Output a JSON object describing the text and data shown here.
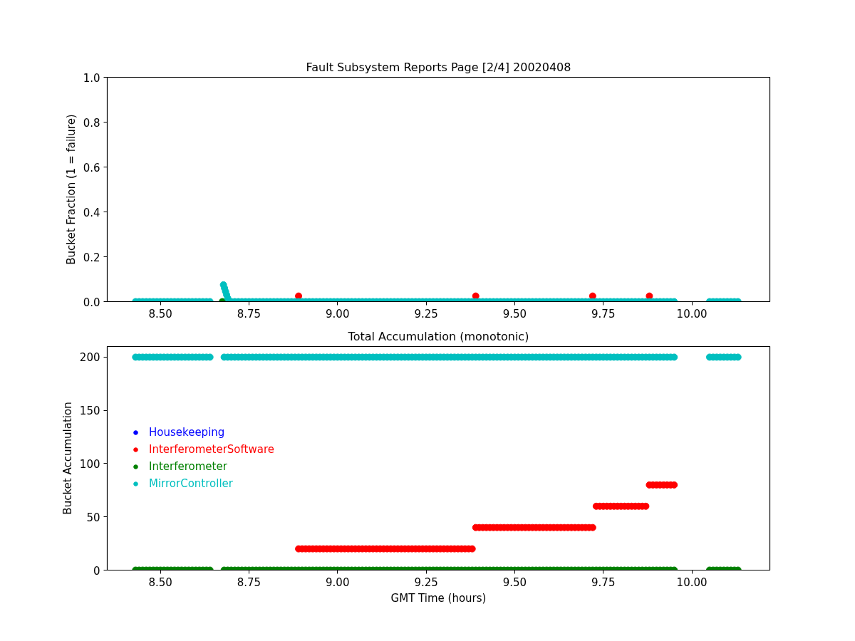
{
  "chart_data": [
    {
      "type": "scatter",
      "title": "Fault Subsystem Reports Page [2/4] 20020408",
      "ylabel": "Bucket Fraction (1 = failure)",
      "marker": "circle",
      "xlim": [
        8.35,
        10.22
      ],
      "xticks": [
        {
          "value": 8.5,
          "label": "8.50"
        },
        {
          "value": 8.75,
          "label": "8.75"
        },
        {
          "value": 9.0,
          "label": "9.00"
        },
        {
          "value": 9.25,
          "label": "9.25"
        },
        {
          "value": 9.5,
          "label": "9.50"
        },
        {
          "value": 9.75,
          "label": "9.75"
        },
        {
          "value": 10.0,
          "label": "10.00"
        }
      ],
      "ylim": [
        0,
        1
      ],
      "yticks": [
        {
          "value": 0,
          "label": "0.0"
        },
        0.2,
        0.4,
        0.6,
        0.8,
        {
          "value": 1,
          "label": "1.0"
        }
      ],
      "series": [
        {
          "color": "#ff0000",
          "x": [
            8.89,
            9.39,
            9.72,
            9.88
          ],
          "values": [
            0.025,
            0.025,
            0.025,
            0.025
          ]
        },
        {
          "color": "#008000",
          "x": [
            8.675
          ],
          "values": [
            0
          ]
        },
        {
          "color": "#00bfbf",
          "x": [
            8.43,
            8.44,
            8.45,
            8.46,
            8.47,
            8.48,
            8.49,
            8.5,
            8.51,
            8.52,
            8.53,
            8.54,
            8.55,
            8.56,
            8.57,
            8.58,
            8.59,
            8.6,
            8.61,
            8.62,
            8.63,
            8.64,
            8.678,
            8.681,
            8.684,
            8.687,
            8.69,
            8.7,
            8.71,
            8.72,
            8.73,
            8.74,
            8.75,
            8.76,
            8.77,
            8.78,
            8.79,
            8.8,
            8.81,
            8.82,
            8.83,
            8.84,
            8.85,
            8.86,
            8.87,
            8.88,
            8.89,
            8.9,
            8.91,
            8.92,
            8.93,
            8.94,
            8.95,
            8.96,
            8.97,
            8.98,
            8.99,
            9.0,
            9.01,
            9.02,
            9.03,
            9.04,
            9.05,
            9.06,
            9.07,
            9.08,
            9.09,
            9.1,
            9.11,
            9.12,
            9.13,
            9.14,
            9.15,
            9.16,
            9.17,
            9.18,
            9.19,
            9.2,
            9.21,
            9.22,
            9.23,
            9.24,
            9.25,
            9.26,
            9.27,
            9.28,
            9.29,
            9.3,
            9.31,
            9.32,
            9.33,
            9.34,
            9.35,
            9.36,
            9.37,
            9.38,
            9.39,
            9.4,
            9.41,
            9.42,
            9.43,
            9.44,
            9.45,
            9.46,
            9.47,
            9.48,
            9.49,
            9.5,
            9.51,
            9.52,
            9.53,
            9.54,
            9.55,
            9.56,
            9.57,
            9.58,
            9.59,
            9.6,
            9.61,
            9.62,
            9.63,
            9.64,
            9.65,
            9.66,
            9.67,
            9.68,
            9.69,
            9.7,
            9.71,
            9.72,
            9.73,
            9.74,
            9.75,
            9.76,
            9.77,
            9.78,
            9.79,
            9.8,
            9.81,
            9.82,
            9.83,
            9.84,
            9.85,
            9.86,
            9.87,
            9.88,
            9.89,
            9.9,
            9.91,
            9.92,
            9.93,
            9.94,
            9.95,
            10.05,
            10.06,
            10.07,
            10.08,
            10.09,
            10.1,
            10.11,
            10.12,
            10.13
          ],
          "values": [
            0,
            0,
            0,
            0,
            0,
            0,
            0,
            0,
            0,
            0,
            0,
            0,
            0,
            0,
            0,
            0,
            0,
            0,
            0,
            0,
            0,
            0,
            0.075,
            0.06,
            0.045,
            0.03,
            0.015,
            0,
            0,
            0,
            0,
            0,
            0,
            0,
            0,
            0,
            0,
            0,
            0,
            0,
            0,
            0,
            0,
            0,
            0,
            0,
            0,
            0,
            0,
            0,
            0,
            0,
            0,
            0,
            0,
            0,
            0,
            0,
            0,
            0,
            0,
            0,
            0,
            0,
            0,
            0,
            0,
            0,
            0,
            0,
            0,
            0,
            0,
            0,
            0,
            0,
            0,
            0,
            0,
            0,
            0,
            0,
            0,
            0,
            0,
            0,
            0,
            0,
            0,
            0,
            0,
            0,
            0,
            0,
            0,
            0,
            0,
            0,
            0,
            0,
            0,
            0,
            0,
            0,
            0,
            0,
            0,
            0,
            0,
            0,
            0,
            0,
            0,
            0,
            0,
            0,
            0,
            0,
            0,
            0,
            0,
            0,
            0,
            0,
            0,
            0,
            0,
            0,
            0,
            0,
            0,
            0,
            0,
            0,
            0,
            0,
            0,
            0,
            0,
            0,
            0,
            0,
            0,
            0,
            0,
            0,
            0,
            0,
            0,
            0,
            0,
            0,
            0,
            0,
            0,
            0,
            0,
            0,
            0,
            0,
            0,
            0
          ]
        }
      ]
    },
    {
      "type": "scatter",
      "title": "Total Accumulation (monotonic)",
      "xlabel": "GMT Time (hours)",
      "ylabel": "Bucket Accumulation",
      "marker": "circle",
      "legend": "left",
      "xlim": [
        8.35,
        10.22
      ],
      "xticks": [
        {
          "value": 8.5,
          "label": "8.50"
        },
        {
          "value": 8.75,
          "label": "8.75"
        },
        {
          "value": 9.0,
          "label": "9.00"
        },
        {
          "value": 9.25,
          "label": "9.25"
        },
        {
          "value": 9.5,
          "label": "9.50"
        },
        {
          "value": 9.75,
          "label": "9.75"
        },
        {
          "value": 10.0,
          "label": "10.00"
        }
      ],
      "ylim": [
        0,
        210
      ],
      "yticks": [
        0,
        50,
        100,
        150,
        200
      ],
      "x": [
        8.43,
        8.44,
        8.45,
        8.46,
        8.47,
        8.48,
        8.49,
        8.5,
        8.51,
        8.52,
        8.53,
        8.54,
        8.55,
        8.56,
        8.57,
        8.58,
        8.59,
        8.6,
        8.61,
        8.62,
        8.63,
        8.64,
        8.68,
        8.69,
        8.7,
        8.71,
        8.72,
        8.73,
        8.74,
        8.75,
        8.76,
        8.77,
        8.78,
        8.79,
        8.8,
        8.81,
        8.82,
        8.83,
        8.84,
        8.85,
        8.86,
        8.87,
        8.88,
        8.89,
        8.9,
        8.91,
        8.92,
        8.93,
        8.94,
        8.95,
        8.96,
        8.97,
        8.98,
        8.99,
        9.0,
        9.01,
        9.02,
        9.03,
        9.04,
        9.05,
        9.06,
        9.07,
        9.08,
        9.09,
        9.1,
        9.11,
        9.12,
        9.13,
        9.14,
        9.15,
        9.16,
        9.17,
        9.18,
        9.19,
        9.2,
        9.21,
        9.22,
        9.23,
        9.24,
        9.25,
        9.26,
        9.27,
        9.28,
        9.29,
        9.3,
        9.31,
        9.32,
        9.33,
        9.34,
        9.35,
        9.36,
        9.37,
        9.38,
        9.39,
        9.4,
        9.41,
        9.42,
        9.43,
        9.44,
        9.45,
        9.46,
        9.47,
        9.48,
        9.49,
        9.5,
        9.51,
        9.52,
        9.53,
        9.54,
        9.55,
        9.56,
        9.57,
        9.58,
        9.59,
        9.6,
        9.61,
        9.62,
        9.63,
        9.64,
        9.65,
        9.66,
        9.67,
        9.68,
        9.69,
        9.7,
        9.71,
        9.72,
        9.73,
        9.74,
        9.75,
        9.76,
        9.77,
        9.78,
        9.79,
        9.8,
        9.81,
        9.82,
        9.83,
        9.84,
        9.85,
        9.86,
        9.87,
        9.88,
        9.89,
        9.9,
        9.91,
        9.92,
        9.93,
        9.94,
        9.95,
        10.05,
        10.06,
        10.07,
        10.08,
        10.09,
        10.1,
        10.11,
        10.12,
        10.13
      ],
      "series": [
        {
          "name": "Housekeeping",
          "color": "#0000ff",
          "values": [
            null,
            null,
            null,
            null,
            null,
            null,
            null,
            null,
            null,
            null,
            null,
            null,
            null,
            null,
            null,
            null,
            null,
            null,
            null,
            null,
            null,
            null,
            null,
            null,
            null,
            null,
            null,
            null,
            null,
            null,
            null,
            null,
            null,
            null,
            null,
            null,
            null,
            null,
            null,
            null,
            null,
            null,
            null,
            null,
            null,
            null,
            null,
            null,
            null,
            null,
            null,
            null,
            null,
            null,
            null,
            null,
            null,
            null,
            null,
            null,
            null,
            null,
            null,
            null,
            null,
            null,
            null,
            null,
            null,
            null,
            null,
            null,
            null,
            null,
            null,
            null,
            null,
            null,
            null,
            null,
            null,
            null,
            null,
            null,
            null,
            null,
            null,
            null,
            null,
            null,
            null,
            null,
            null,
            null,
            null,
            null,
            null,
            null,
            null,
            null,
            null,
            null,
            null,
            null,
            null,
            null,
            null,
            null,
            null,
            null,
            null,
            null,
            null,
            null,
            null,
            null,
            null,
            null,
            null,
            null,
            null,
            null,
            null,
            null,
            null,
            null,
            null,
            null,
            null,
            null,
            null,
            null,
            null,
            null,
            null,
            null,
            null,
            null,
            null,
            null,
            null,
            null,
            null,
            null,
            null,
            null,
            null,
            null,
            null,
            null,
            null,
            null,
            null,
            null,
            null,
            null,
            null,
            null,
            null
          ]
        },
        {
          "name": "InterferometerSoftware",
          "color": "#ff0000",
          "x": [
            8.89,
            8.9,
            8.91,
            8.92,
            8.93,
            8.94,
            8.95,
            8.96,
            8.97,
            8.98,
            8.99,
            9.0,
            9.01,
            9.02,
            9.03,
            9.04,
            9.05,
            9.06,
            9.07,
            9.08,
            9.09,
            9.1,
            9.11,
            9.12,
            9.13,
            9.14,
            9.15,
            9.16,
            9.17,
            9.18,
            9.19,
            9.2,
            9.21,
            9.22,
            9.23,
            9.24,
            9.25,
            9.26,
            9.27,
            9.28,
            9.29,
            9.3,
            9.31,
            9.32,
            9.33,
            9.34,
            9.35,
            9.36,
            9.37,
            9.38,
            9.39,
            9.4,
            9.41,
            9.42,
            9.43,
            9.44,
            9.45,
            9.46,
            9.47,
            9.48,
            9.49,
            9.5,
            9.51,
            9.52,
            9.53,
            9.54,
            9.55,
            9.56,
            9.57,
            9.58,
            9.59,
            9.6,
            9.61,
            9.62,
            9.63,
            9.64,
            9.65,
            9.66,
            9.67,
            9.68,
            9.69,
            9.7,
            9.71,
            9.72,
            9.73,
            9.74,
            9.75,
            9.76,
            9.77,
            9.78,
            9.79,
            9.8,
            9.81,
            9.82,
            9.83,
            9.84,
            9.85,
            9.86,
            9.87,
            9.88,
            9.89,
            9.9,
            9.91,
            9.92,
            9.93,
            9.94,
            9.95
          ],
          "values": [
            20,
            20,
            20,
            20,
            20,
            20,
            20,
            20,
            20,
            20,
            20,
            20,
            20,
            20,
            20,
            20,
            20,
            20,
            20,
            20,
            20,
            20,
            20,
            20,
            20,
            20,
            20,
            20,
            20,
            20,
            20,
            20,
            20,
            20,
            20,
            20,
            20,
            20,
            20,
            20,
            20,
            20,
            20,
            20,
            20,
            20,
            20,
            20,
            20,
            20,
            40,
            40,
            40,
            40,
            40,
            40,
            40,
            40,
            40,
            40,
            40,
            40,
            40,
            40,
            40,
            40,
            40,
            40,
            40,
            40,
            40,
            40,
            40,
            40,
            40,
            40,
            40,
            40,
            40,
            40,
            40,
            40,
            40,
            40,
            60,
            60,
            60,
            60,
            60,
            60,
            60,
            60,
            60,
            60,
            60,
            60,
            60,
            60,
            60,
            80,
            80,
            80,
            80,
            80,
            80,
            80,
            80
          ]
        },
        {
          "name": "Interferometer",
          "color": "#008000",
          "values": [
            0,
            0,
            0,
            0,
            0,
            0,
            0,
            0,
            0,
            0,
            0,
            0,
            0,
            0,
            0,
            0,
            0,
            0,
            0,
            0,
            0,
            0,
            0,
            0,
            0,
            0,
            0,
            0,
            0,
            0,
            0,
            0,
            0,
            0,
            0,
            0,
            0,
            0,
            0,
            0,
            0,
            0,
            0,
            0,
            0,
            0,
            0,
            0,
            0,
            0,
            0,
            0,
            0,
            0,
            0,
            0,
            0,
            0,
            0,
            0,
            0,
            0,
            0,
            0,
            0,
            0,
            0,
            0,
            0,
            0,
            0,
            0,
            0,
            0,
            0,
            0,
            0,
            0,
            0,
            0,
            0,
            0,
            0,
            0,
            0,
            0,
            0,
            0,
            0,
            0,
            0,
            0,
            0,
            0,
            0,
            0,
            0,
            0,
            0,
            0,
            0,
            0,
            0,
            0,
            0,
            0,
            0,
            0,
            0,
            0,
            0,
            0,
            0,
            0,
            0,
            0,
            0,
            0,
            0,
            0,
            0,
            0,
            0,
            0,
            0,
            0,
            0,
            0,
            0,
            0,
            0,
            0,
            0,
            0,
            0,
            0,
            0,
            0,
            0,
            0,
            0,
            0,
            0,
            0,
            0,
            0,
            0,
            0,
            0,
            0,
            0,
            0,
            0,
            0,
            0,
            0,
            0,
            0,
            0
          ]
        },
        {
          "name": "MirrorController",
          "color": "#00bfbf",
          "values": [
            200,
            200,
            200,
            200,
            200,
            200,
            200,
            200,
            200,
            200,
            200,
            200,
            200,
            200,
            200,
            200,
            200,
            200,
            200,
            200,
            200,
            200,
            200,
            200,
            200,
            200,
            200,
            200,
            200,
            200,
            200,
            200,
            200,
            200,
            200,
            200,
            200,
            200,
            200,
            200,
            200,
            200,
            200,
            200,
            200,
            200,
            200,
            200,
            200,
            200,
            200,
            200,
            200,
            200,
            200,
            200,
            200,
            200,
            200,
            200,
            200,
            200,
            200,
            200,
            200,
            200,
            200,
            200,
            200,
            200,
            200,
            200,
            200,
            200,
            200,
            200,
            200,
            200,
            200,
            200,
            200,
            200,
            200,
            200,
            200,
            200,
            200,
            200,
            200,
            200,
            200,
            200,
            200,
            200,
            200,
            200,
            200,
            200,
            200,
            200,
            200,
            200,
            200,
            200,
            200,
            200,
            200,
            200,
            200,
            200,
            200,
            200,
            200,
            200,
            200,
            200,
            200,
            200,
            200,
            200,
            200,
            200,
            200,
            200,
            200,
            200,
            200,
            200,
            200,
            200,
            200,
            200,
            200,
            200,
            200,
            200,
            200,
            200,
            200,
            200,
            200,
            200,
            200,
            200,
            200,
            200,
            200,
            200,
            200,
            200,
            200,
            200,
            200,
            200,
            200,
            200,
            200,
            200,
            200
          ]
        }
      ]
    }
  ]
}
